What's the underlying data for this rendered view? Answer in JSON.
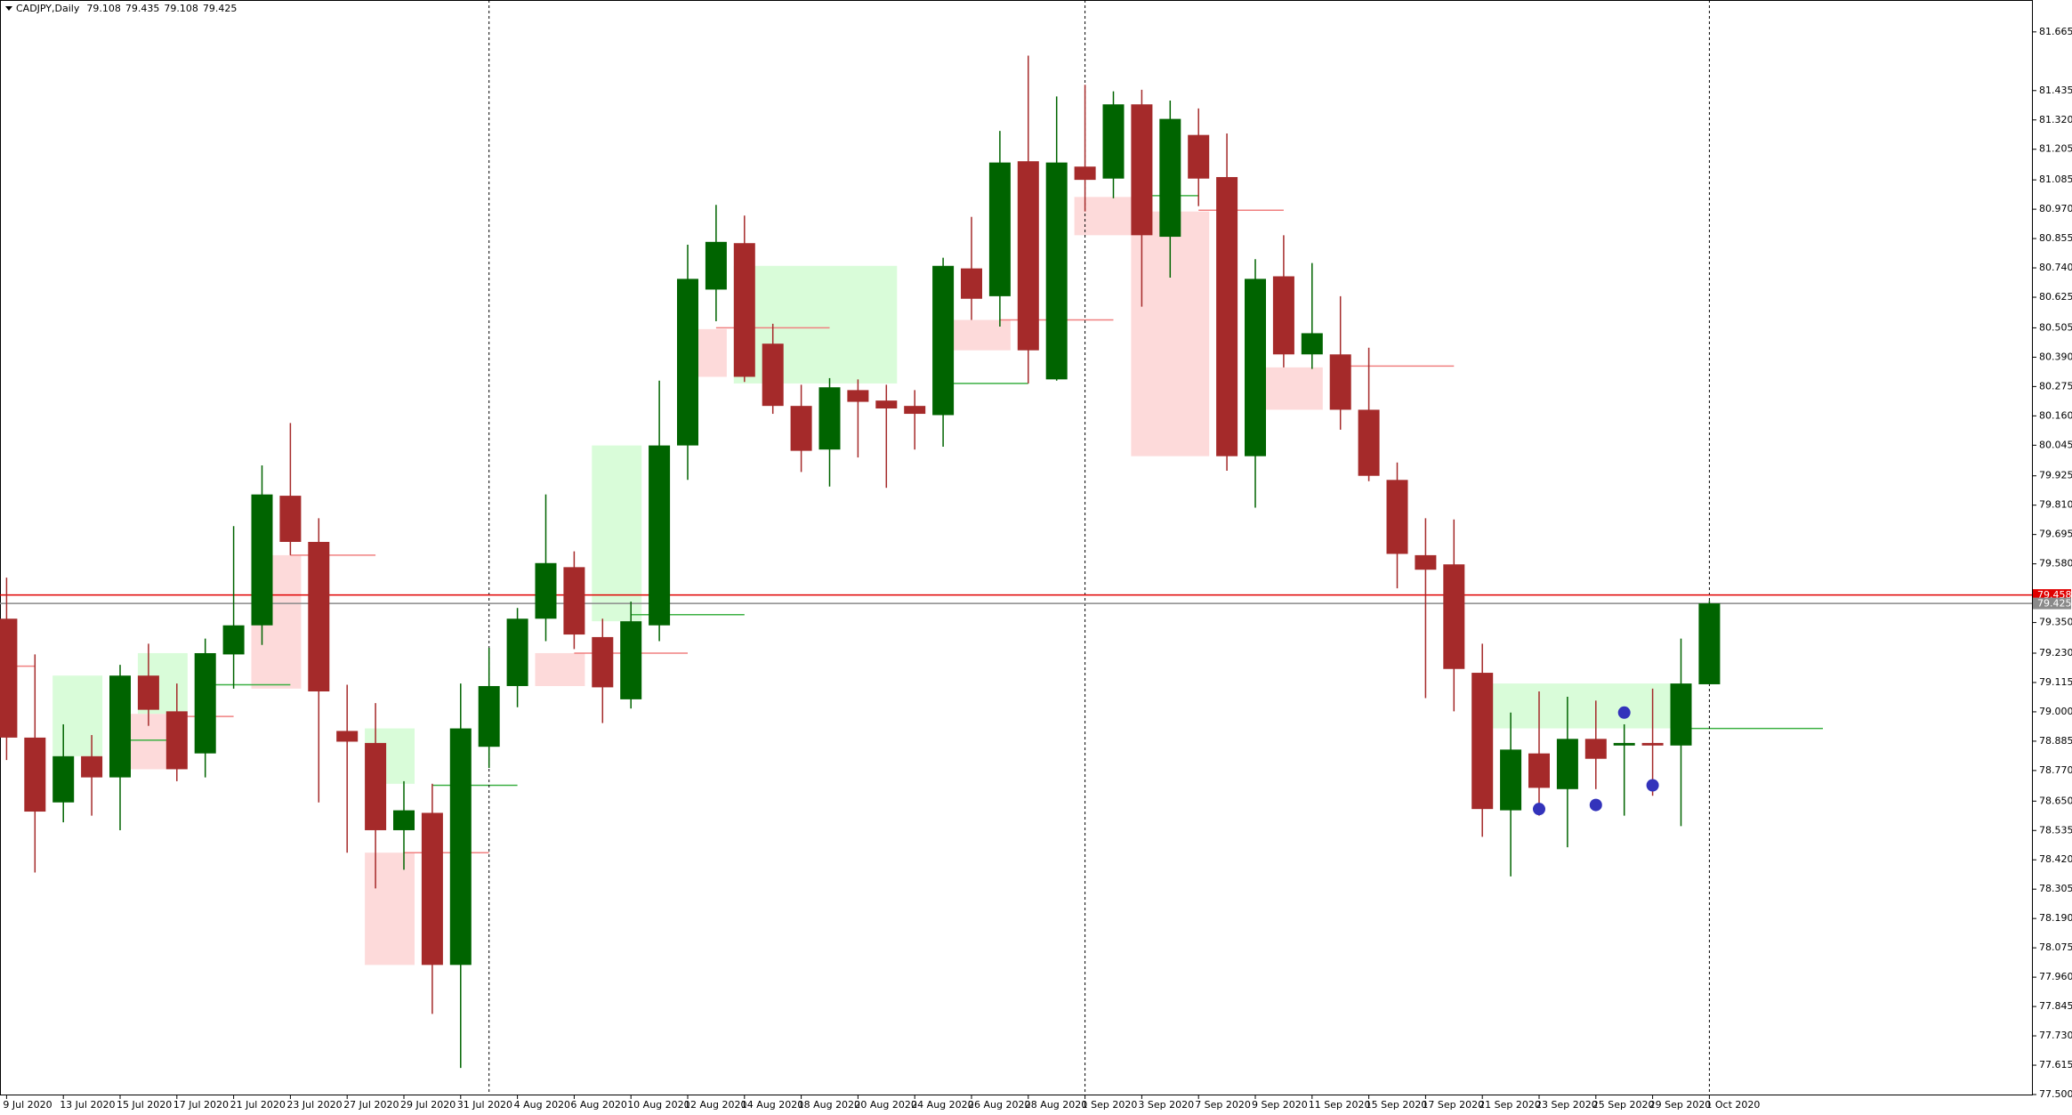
{
  "chart_data": {
    "type": "candlestick",
    "title": "CADJPY,Daily",
    "header_values": [
      79.108,
      79.435,
      79.108,
      79.425
    ],
    "categories": [
      "9 Jul 2020",
      null,
      "13 Jul 2020",
      null,
      "15 Jul 2020",
      null,
      "17 Jul 2020",
      null,
      "21 Jul 2020",
      null,
      "23 Jul 2020",
      null,
      "27 Jul 2020",
      null,
      "29 Jul 2020",
      null,
      "31 Jul 2020",
      null,
      "4 Aug 2020",
      null,
      "6 Aug 2020",
      null,
      "10 Aug 2020",
      null,
      "12 Aug 2020",
      null,
      "14 Aug 2020",
      null,
      "18 Aug 2020",
      null,
      "20 Aug 2020",
      null,
      "24 Aug 2020",
      null,
      "26 Aug 2020",
      null,
      "28 Aug 2020",
      null,
      "1 Sep 2020",
      null,
      "3 Sep 2020",
      null,
      "7 Sep 2020",
      null,
      "9 Sep 2020",
      null,
      "11 Sep 2020",
      null,
      "15 Sep 2020",
      null,
      "17 Sep 2020",
      null,
      "21 Sep 2020",
      null,
      "23 Sep 2020",
      null,
      "25 Sep 2020",
      null,
      "29 Sep 2020",
      null,
      "1 Oct 2020"
    ],
    "open": [
      79.365,
      78.899,
      78.645,
      78.826,
      78.743,
      79.142,
      79.002,
      78.837,
      79.225,
      79.339,
      79.847,
      79.666,
      78.925,
      78.878,
      78.536,
      78.604,
      78.008,
      78.863,
      79.101,
      79.365,
      79.567,
      79.293,
      79.049,
      79.339,
      80.044,
      80.655,
      80.837,
      80.443,
      80.199,
      80.028,
      80.261,
      80.22,
      80.199,
      80.163,
      80.738,
      80.629,
      81.158,
      80.303,
      81.137,
      81.09,
      81.381,
      80.862,
      81.261,
      81.096,
      80.002,
      80.707,
      80.401,
      80.401,
      80.184,
      79.909,
      79.614,
      79.578,
      79.153,
      78.614,
      78.837,
      78.697,
      78.894,
      78.868,
      78.878,
      78.868,
      79.108
    ],
    "high": [
      79.526,
      79.225,
      78.951,
      78.909,
      79.184,
      79.267,
      79.111,
      79.287,
      79.728,
      79.966,
      80.132,
      79.759,
      79.106,
      79.034,
      78.728,
      78.718,
      79.111,
      79.251,
      79.407,
      79.852,
      79.629,
      79.365,
      79.432,
      80.298,
      80.831,
      80.987,
      80.945,
      80.521,
      80.282,
      80.308,
      80.303,
      80.282,
      80.261,
      80.78,
      80.94,
      81.277,
      81.572,
      81.412,
      81.458,
      81.432,
      81.438,
      81.396,
      81.365,
      81.267,
      80.774,
      80.868,
      80.759,
      80.629,
      80.427,
      79.977,
      79.759,
      79.754,
      79.267,
      78.997,
      79.08,
      79.059,
      79.044,
      78.951,
      79.091,
      79.287,
      79.435
    ],
    "low": [
      78.811,
      78.37,
      78.567,
      78.593,
      78.536,
      78.945,
      78.728,
      78.743,
      79.091,
      79.262,
      79.614,
      78.645,
      78.448,
      78.308,
      78.381,
      77.816,
      77.604,
      78.78,
      79.018,
      79.277,
      79.246,
      78.956,
      79.013,
      79.277,
      79.909,
      80.531,
      80.293,
      80.168,
      79.94,
      79.883,
      79.997,
      79.878,
      80.028,
      80.039,
      80.536,
      80.51,
      80.287,
      80.298,
      80.961,
      81.013,
      80.588,
      80.702,
      80.982,
      79.945,
      79.8,
      80.35,
      80.344,
      80.106,
      79.904,
      79.484,
      79.054,
      79.002,
      78.51,
      78.355,
      78.593,
      78.469,
      78.697,
      78.593,
      78.671,
      78.552,
      79.108
    ],
    "close": [
      78.899,
      78.609,
      78.826,
      78.743,
      79.142,
      79.008,
      78.775,
      79.23,
      79.339,
      79.852,
      79.666,
      79.08,
      78.883,
      78.536,
      78.614,
      78.008,
      78.935,
      79.101,
      79.365,
      79.583,
      79.303,
      79.096,
      79.355,
      80.044,
      80.697,
      80.842,
      80.313,
      80.199,
      80.023,
      80.272,
      80.215,
      80.189,
      80.168,
      80.748,
      80.619,
      81.153,
      80.417,
      81.153,
      81.085,
      81.381,
      80.868,
      81.324,
      81.09,
      80.002,
      80.697,
      80.401,
      80.484,
      80.184,
      79.925,
      79.619,
      79.557,
      79.168,
      78.619,
      78.852,
      78.702,
      78.894,
      78.816,
      78.878,
      78.868,
      79.111,
      79.425
    ],
    "up_color": "#006400",
    "down_color": "#a52a2a",
    "ylim": [
      77.5,
      81.79
    ],
    "yticks": [
      {
        "value": 77.5,
        "label": "77.500"
      },
      77.615,
      {
        "value": 77.73,
        "label": "77.730"
      },
      77.845,
      {
        "value": 77.96,
        "label": "77.960"
      },
      78.075,
      {
        "value": 78.19,
        "label": "78.190"
      },
      78.305,
      {
        "value": 78.42,
        "label": "78.420"
      },
      78.535,
      {
        "value": 78.65,
        "label": "78.650"
      },
      {
        "value": 78.77,
        "label": "78.770"
      },
      78.885,
      {
        "value": 79,
        "label": "79.000"
      },
      79.115,
      {
        "value": 79.23,
        "label": "79.230"
      },
      {
        "value": 79.35,
        "label": "79.350"
      },
      {
        "value": 79.58,
        "label": "79.580"
      },
      79.695,
      {
        "value": 79.81,
        "label": "79.810"
      },
      79.925,
      80.045,
      {
        "value": 80.16,
        "label": "80.160"
      },
      80.275,
      {
        "value": 80.39,
        "label": "80.390"
      },
      80.505,
      80.625,
      {
        "value": 80.74,
        "label": "80.740"
      },
      80.855,
      {
        "value": 80.97,
        "label": "80.970"
      },
      81.085,
      81.205,
      {
        "value": 81.32,
        "label": "81.320"
      },
      81.435,
      81.665
    ],
    "price_lines": [
      {
        "value": 79.458,
        "color": "#e00000"
      },
      {
        "value": 79.425,
        "color": "#8a8a8a"
      }
    ],
    "zones": [
      {
        "from": 2,
        "to": 3,
        "top": 79.142,
        "bottom": 78.826,
        "color": "#d9fcd9"
      },
      {
        "from": 5,
        "to": 6,
        "top": 79.23,
        "bottom": 78.992,
        "color": "#d9fcd9"
      },
      {
        "from": 4,
        "to": 6,
        "top": 78.992,
        "bottom": 78.775,
        "color": "#fddada"
      },
      {
        "from": 9,
        "to": 10,
        "top": 79.614,
        "bottom": 79.091,
        "color": "#fddada"
      },
      {
        "from": 13,
        "to": 14,
        "top": 78.935,
        "bottom": 78.718,
        "color": "#d9fcd9"
      },
      {
        "from": 13,
        "to": 14,
        "top": 78.448,
        "bottom": 78.008,
        "color": "#fddada"
      },
      {
        "from": 19,
        "to": 20,
        "top": 79.23,
        "bottom": 79.101,
        "color": "#fddada"
      },
      {
        "from": 21,
        "to": 22,
        "top": 80.044,
        "bottom": 79.355,
        "color": "#d9fcd9"
      },
      {
        "from": 24,
        "to": 25,
        "top": 80.5,
        "bottom": 80.313,
        "color": "#fddada"
      },
      {
        "from": 26,
        "to": 31,
        "top": 80.748,
        "bottom": 80.287,
        "color": "#d9fcd9"
      },
      {
        "from": 33,
        "to": 35,
        "top": 80.536,
        "bottom": 80.417,
        "color": "#fddada"
      },
      {
        "from": 38,
        "to": 40,
        "top": 81.018,
        "bottom": 80.868,
        "color": "#fddada"
      },
      {
        "from": 40,
        "to": 42,
        "top": 80.961,
        "bottom": 80.002,
        "color": "#fddada"
      },
      {
        "from": 44,
        "to": 46,
        "top": 80.35,
        "bottom": 80.184,
        "color": "#fddada"
      },
      {
        "from": 52,
        "to": 59,
        "top": 79.111,
        "bottom": 78.935,
        "color": "#d9fcd9"
      }
    ],
    "levels": [
      {
        "from": 0,
        "to": 1,
        "value": 79.179,
        "color": "#f08080"
      },
      {
        "from": 4,
        "to": 6,
        "value": 78.889,
        "color": "#3cb043"
      },
      {
        "from": 6,
        "to": 8,
        "value": 78.982,
        "color": "#f08080"
      },
      {
        "from": 7,
        "to": 10,
        "value": 79.106,
        "color": "#3cb043"
      },
      {
        "from": 10,
        "to": 13,
        "value": 79.614,
        "color": "#f08080"
      },
      {
        "from": 15,
        "to": 18,
        "value": 78.712,
        "color": "#3cb043"
      },
      {
        "from": 14,
        "to": 17,
        "value": 78.448,
        "color": "#f08080"
      },
      {
        "from": 20,
        "to": 24,
        "value": 79.23,
        "color": "#f08080"
      },
      {
        "from": 22,
        "to": 26,
        "value": 79.381,
        "color": "#3cb043"
      },
      {
        "from": 25,
        "to": 29,
        "value": 80.505,
        "color": "#f08080"
      },
      {
        "from": 33,
        "to": 36,
        "value": 80.287,
        "color": "#3cb043"
      },
      {
        "from": 35,
        "to": 39,
        "value": 80.536,
        "color": "#f08080"
      },
      {
        "from": 40,
        "to": 42,
        "value": 81.023,
        "color": "#3cb043"
      },
      {
        "from": 42,
        "to": 45,
        "value": 80.966,
        "color": "#f08080"
      },
      {
        "from": 47,
        "to": 51,
        "value": 80.355,
        "color": "#f08080"
      },
      {
        "from": 59,
        "to": 64,
        "value": 78.935,
        "color": "#3cb043"
      }
    ],
    "markers": [
      {
        "at": 54,
        "value": 78.619,
        "color": "#3333bb"
      },
      {
        "at": 56,
        "value": 78.635,
        "color": "#3333bb"
      },
      {
        "at": 57,
        "value": 78.997,
        "color": "#3333bb"
      },
      {
        "at": 58,
        "value": 78.712,
        "color": "#3333bb"
      }
    ]
  }
}
